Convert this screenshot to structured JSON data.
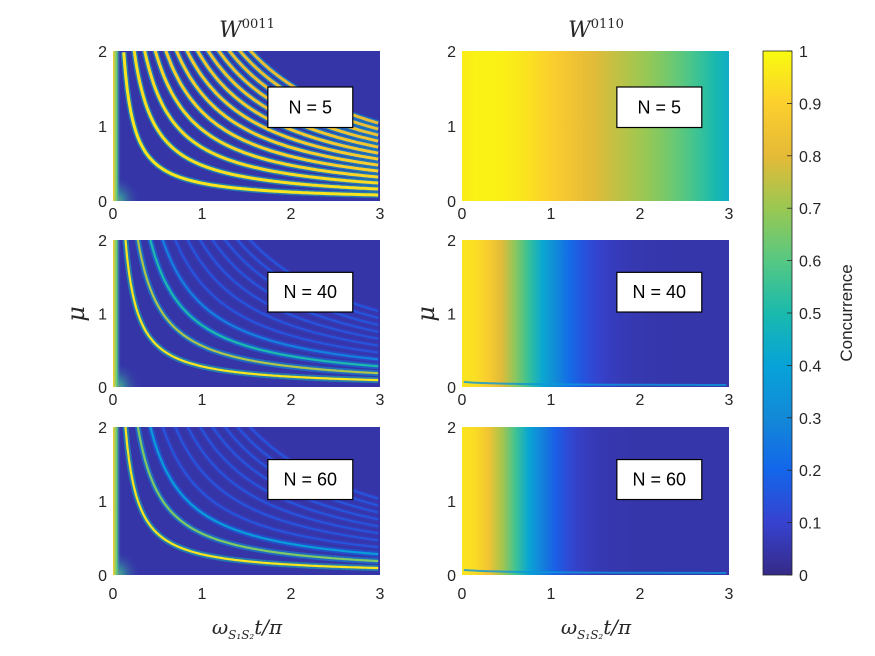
{
  "chart_data": {
    "type": "heatmap",
    "colorbar": {
      "label": "Concurrence",
      "range": [
        0,
        1
      ],
      "ticks": [
        "0",
        "0.1",
        "0.2",
        "0.3",
        "0.4",
        "0.5",
        "0.6",
        "0.7",
        "0.8",
        "0.9",
        "1"
      ],
      "colormap": "parula"
    },
    "column_titles": [
      {
        "base": "W",
        "sup": "0011"
      },
      {
        "base": "W",
        "sup": "0110"
      }
    ],
    "ylabel": "μ",
    "xlabel": {
      "omega": "ω",
      "sub": "S₁S₂",
      "rest": "t/π"
    },
    "xlim": [
      0,
      3
    ],
    "ylim": [
      0,
      2
    ],
    "xticks": [
      "0",
      "1",
      "2",
      "3"
    ],
    "yticks": [
      "0",
      "1",
      "2"
    ],
    "panels": [
      {
        "id": "w0011-n5",
        "column": "W0011",
        "N_label": "N = 5",
        "N": 5
      },
      {
        "id": "w0110-n5",
        "column": "W0110",
        "N_label": "N = 5",
        "N": 5
      },
      {
        "id": "w0011-n40",
        "column": "W0011",
        "N_label": "N = 40",
        "N": 40
      },
      {
        "id": "w0110-n40",
        "column": "W0110",
        "N_label": "N = 40",
        "N": 40
      },
      {
        "id": "w0011-n60",
        "column": "W0011",
        "N_label": "N = 60",
        "N": 60
      },
      {
        "id": "w0110-n60",
        "column": "W0110",
        "N_label": "N = 60",
        "N": 60
      }
    ]
  }
}
